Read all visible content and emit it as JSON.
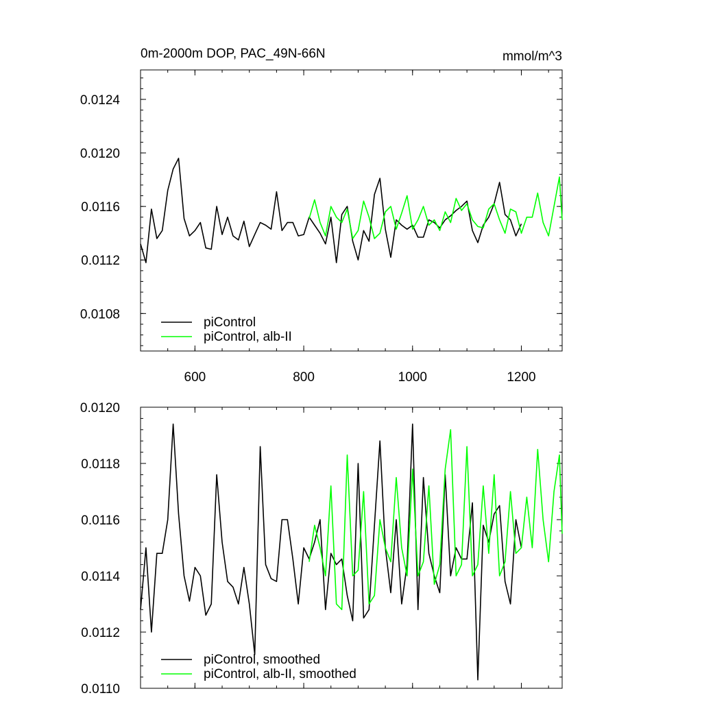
{
  "chart_data": [
    {
      "type": "line",
      "title": "0m-2000m DOP, PAC_49N-66N",
      "units": "mmol/m^3",
      "xlabel": "",
      "ylabel": "",
      "xlim": [
        500,
        1275
      ],
      "ylim": [
        0.01052,
        0.01262
      ],
      "x_ticks": [
        600,
        800,
        1000,
        1200
      ],
      "x_tick_labels": [
        "600",
        "800",
        "1000",
        "1200"
      ],
      "y_ticks": [
        0.0108,
        0.0112,
        0.0116,
        0.012,
        0.0124
      ],
      "y_tick_labels": [
        "0.0108",
        "0.0112",
        "0.0116",
        "0.0120",
        "0.0124"
      ],
      "grid": false,
      "legend_position": "bottom-left",
      "series": [
        {
          "name": "piControl",
          "color": "#000000",
          "x": [
            500,
            510,
            520,
            530,
            540,
            550,
            560,
            570,
            580,
            590,
            600,
            610,
            620,
            630,
            640,
            650,
            660,
            670,
            680,
            690,
            700,
            710,
            720,
            730,
            740,
            750,
            760,
            770,
            780,
            790,
            800,
            810,
            820,
            830,
            840,
            850,
            860,
            870,
            880,
            890,
            900,
            910,
            920,
            930,
            940,
            950,
            960,
            970,
            980,
            990,
            1000,
            1010,
            1020,
            1030,
            1040,
            1050,
            1060,
            1070,
            1080,
            1090,
            1100,
            1110,
            1120,
            1130,
            1140,
            1150,
            1160,
            1170,
            1180,
            1190,
            1200
          ],
          "values": [
            0.01132,
            0.01118,
            0.01158,
            0.01136,
            0.01142,
            0.01172,
            0.01188,
            0.01196,
            0.01151,
            0.01138,
            0.01142,
            0.01148,
            0.01129,
            0.01128,
            0.0116,
            0.01139,
            0.01152,
            0.01138,
            0.01135,
            0.01149,
            0.0113,
            0.01139,
            0.01148,
            0.01146,
            0.01143,
            0.01171,
            0.01142,
            0.01148,
            0.01148,
            0.01138,
            0.01139,
            0.01152,
            0.01146,
            0.0114,
            0.01132,
            0.01152,
            0.01118,
            0.01154,
            0.0116,
            0.01134,
            0.0112,
            0.01142,
            0.01134,
            0.01169,
            0.01181,
            0.01143,
            0.01122,
            0.0115,
            0.01146,
            0.01143,
            0.01146,
            0.01137,
            0.01137,
            0.0115,
            0.01148,
            0.01144,
            0.0115,
            0.01153,
            0.01157,
            0.0116,
            0.01164,
            0.01142,
            0.01133,
            0.01146,
            0.01152,
            0.01162,
            0.01178,
            0.01154,
            0.0115,
            0.01138,
            0.01147
          ]
        },
        {
          "name": "piControl, alb-II",
          "color": "#00ff00",
          "x": [
            810,
            820,
            830,
            840,
            850,
            860,
            870,
            880,
            890,
            900,
            910,
            920,
            930,
            940,
            950,
            960,
            970,
            980,
            990,
            1000,
            1010,
            1020,
            1030,
            1040,
            1050,
            1060,
            1070,
            1080,
            1090,
            1100,
            1110,
            1120,
            1130,
            1140,
            1150,
            1160,
            1170,
            1180,
            1190,
            1200,
            1210,
            1220,
            1230,
            1240,
            1250,
            1260,
            1270,
            1275
          ],
          "values": [
            0.01151,
            0.01165,
            0.01148,
            0.01138,
            0.0116,
            0.01152,
            0.01148,
            0.01158,
            0.01136,
            0.01142,
            0.01164,
            0.01152,
            0.01136,
            0.0114,
            0.01156,
            0.0116,
            0.01143,
            0.01155,
            0.01168,
            0.01143,
            0.0115,
            0.0116,
            0.01146,
            0.0115,
            0.01142,
            0.01156,
            0.01148,
            0.01166,
            0.01157,
            0.01162,
            0.0115,
            0.01145,
            0.01144,
            0.01158,
            0.01162,
            0.0115,
            0.0114,
            0.01158,
            0.01156,
            0.0114,
            0.01152,
            0.01152,
            0.0117,
            0.01148,
            0.01138,
            0.0116,
            0.01182,
            0.0115
          ]
        }
      ]
    },
    {
      "type": "line",
      "title": "",
      "xlabel": "",
      "ylabel": "",
      "xlim": [
        500,
        1275
      ],
      "ylim": [
        0.011,
        0.012
      ],
      "x_ticks": [
        600,
        800,
        1000,
        1200
      ],
      "x_tick_labels": [],
      "y_ticks": [
        0.011,
        0.0112,
        0.0114,
        0.0116,
        0.0118,
        0.012
      ],
      "y_tick_labels": [
        "0.0110",
        "0.0112",
        "0.0114",
        "0.0116",
        "0.0118",
        "0.0120"
      ],
      "grid": false,
      "legend_position": "bottom-left",
      "series": [
        {
          "name": "piControl, smoothed",
          "color": "#000000",
          "x": [
            500,
            510,
            520,
            530,
            540,
            550,
            560,
            570,
            580,
            590,
            600,
            610,
            620,
            630,
            640,
            650,
            660,
            670,
            680,
            690,
            700,
            710,
            720,
            730,
            740,
            750,
            760,
            770,
            780,
            790,
            800,
            810,
            820,
            830,
            840,
            850,
            860,
            870,
            880,
            890,
            900,
            910,
            920,
            930,
            940,
            950,
            960,
            970,
            980,
            990,
            1000,
            1010,
            1020,
            1030,
            1040,
            1050,
            1060,
            1070,
            1080,
            1090,
            1100,
            1110,
            1120,
            1130,
            1140,
            1150,
            1160,
            1170,
            1180,
            1190,
            1200
          ],
          "values": [
            0.01128,
            0.0115,
            0.0112,
            0.01148,
            0.01148,
            0.0116,
            0.01194,
            0.01162,
            0.0114,
            0.01131,
            0.01143,
            0.0114,
            0.01126,
            0.0113,
            0.01176,
            0.01152,
            0.01138,
            0.01136,
            0.0113,
            0.01143,
            0.0113,
            0.01112,
            0.01186,
            0.01144,
            0.01139,
            0.01138,
            0.0116,
            0.0116,
            0.01146,
            0.0113,
            0.0115,
            0.01146,
            0.01152,
            0.0116,
            0.01128,
            0.01148,
            0.01144,
            0.01146,
            0.01133,
            0.01124,
            0.0118,
            0.01125,
            0.01128,
            0.01158,
            0.01188,
            0.0115,
            0.01134,
            0.0116,
            0.0113,
            0.01144,
            0.01194,
            0.01128,
            0.01175,
            0.01148,
            0.0114,
            0.01134,
            0.01176,
            0.0114,
            0.0115,
            0.01146,
            0.01146,
            0.01166,
            0.01103,
            0.01158,
            0.01152,
            0.01162,
            0.01165,
            0.01138,
            0.0113,
            0.0116,
            0.0115
          ]
        },
        {
          "name": "piControl, alb-II, smoothed",
          "color": "#00ff00",
          "x": [
            810,
            820,
            830,
            840,
            850,
            860,
            870,
            880,
            890,
            900,
            910,
            920,
            930,
            940,
            950,
            960,
            970,
            980,
            990,
            1000,
            1010,
            1020,
            1030,
            1040,
            1050,
            1060,
            1070,
            1080,
            1090,
            1100,
            1110,
            1120,
            1130,
            1140,
            1150,
            1160,
            1170,
            1180,
            1190,
            1200,
            1210,
            1220,
            1230,
            1240,
            1250,
            1260,
            1270,
            1275
          ],
          "values": [
            0.01145,
            0.01158,
            0.0115,
            0.0114,
            0.01172,
            0.0113,
            0.01128,
            0.01183,
            0.0114,
            0.01142,
            0.0117,
            0.0113,
            0.01133,
            0.0116,
            0.0115,
            0.01145,
            0.01175,
            0.0115,
            0.0114,
            0.01178,
            0.0114,
            0.01145,
            0.01172,
            0.01137,
            0.01144,
            0.01178,
            0.01192,
            0.0114,
            0.01144,
            0.01186,
            0.0114,
            0.01144,
            0.01172,
            0.01148,
            0.01176,
            0.0114,
            0.01145,
            0.0117,
            0.01148,
            0.0115,
            0.01168,
            0.0115,
            0.01185,
            0.0116,
            0.01145,
            0.0117,
            0.01183,
            0.01155
          ]
        }
      ]
    }
  ]
}
